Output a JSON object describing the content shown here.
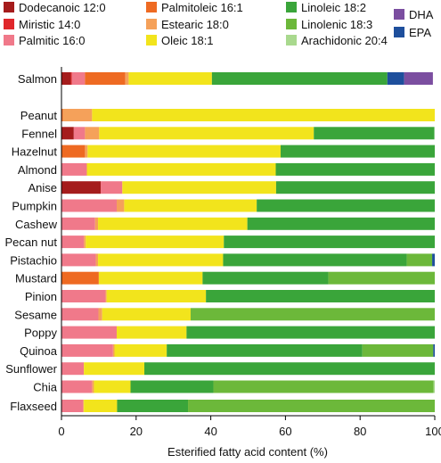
{
  "chart_data": {
    "type": "bar",
    "orientation": "horizontal",
    "stacked": true,
    "xlabel": "Esterified fatty acid content (%)",
    "ylabel": "",
    "xlim": [
      0,
      100
    ],
    "xticks": [
      "0",
      "20",
      "40",
      "60",
      "80",
      "100"
    ],
    "grid": false,
    "legend_position": "top",
    "categories": [
      "Salmon",
      "Peanut",
      "Fennel",
      "Hazelnut",
      "Almond",
      "Anise",
      "Pumpkin",
      "Cashew",
      "Pecan nut",
      "Pistachio",
      "Mustard",
      "Pinion",
      "Sesame",
      "Poppy",
      "Quinoa",
      "Sunflower",
      "Chia",
      "Flaxseed"
    ],
    "series": [
      {
        "name": "Dodecanoic 12:0",
        "color": "#a51c1c",
        "values": [
          2.5,
          0,
          3.3,
          0,
          0,
          10.5,
          0,
          0,
          0,
          0,
          0,
          0,
          0,
          0,
          0,
          0,
          0,
          0
        ]
      },
      {
        "name": "Miristic 14:0",
        "color": "#e0272b",
        "values": [
          0.3,
          0,
          0,
          0,
          0,
          0,
          0,
          0,
          0,
          0,
          0,
          0,
          0,
          0,
          0,
          0,
          0,
          0
        ]
      },
      {
        "name": "Palmitic 16:0",
        "color": "#f0798a",
        "values": [
          3.5,
          0,
          3.0,
          0,
          6.8,
          5.8,
          14.8,
          9.0,
          6.0,
          9.2,
          0,
          11.8,
          9.9,
          14.8,
          13.8,
          6.0,
          8.2,
          5.8
        ]
      },
      {
        "name": "Palmitoleic 16:1",
        "color": "#ee6a22",
        "values": [
          10.8,
          0.4,
          0,
          6.3,
          0,
          0,
          0,
          0,
          0,
          0,
          10.0,
          0,
          0,
          0,
          0,
          0,
          0,
          0
        ]
      },
      {
        "name": "Estearic 18:0",
        "color": "#f5a15a",
        "values": [
          0.9,
          7.8,
          3.8,
          0.7,
          0,
          0,
          2.0,
          0.8,
          0.5,
          0.6,
          0,
          0.3,
          1.0,
          0,
          0.4,
          0,
          0.5,
          0.2
        ]
      },
      {
        "name": "Oleic 18:1",
        "color": "#f2e41c",
        "values": [
          22.3,
          91.8,
          57.5,
          51.7,
          50.6,
          41.2,
          35.5,
          40.0,
          37.0,
          33.5,
          27.8,
          26.6,
          23.7,
          18.7,
          14.0,
          16.2,
          9.8,
          8.9
        ]
      },
      {
        "name": "Linoleic 18:2",
        "color": "#3aa53a",
        "values": [
          47.0,
          0,
          32.3,
          41.3,
          42.6,
          42.5,
          47.7,
          50.2,
          56.5,
          49.2,
          33.7,
          61.3,
          0,
          66.5,
          52.4,
          77.8,
          22.2,
          19.0
        ]
      },
      {
        "name": "Linolenic 18:3",
        "color": "#6cb83a",
        "values": [
          0,
          0,
          0,
          0,
          0,
          0,
          0,
          0,
          0,
          6.8,
          28.5,
          0,
          65.4,
          0,
          19.0,
          0,
          59.0,
          66.1
        ]
      },
      {
        "name": "Arachidonic 20:4",
        "color": "#a9d98e",
        "values": [
          0,
          0,
          0,
          0,
          0,
          0,
          0,
          0,
          0,
          0,
          0,
          0,
          0,
          0,
          0,
          0,
          0.3,
          0
        ]
      },
      {
        "name": "EPA",
        "color": "#1e4f9c",
        "values": [
          4.5,
          0,
          0,
          0,
          0,
          0,
          0,
          0,
          0,
          0.7,
          0,
          0,
          0,
          0,
          0.4,
          0,
          0,
          0
        ]
      },
      {
        "name": "DHA",
        "color": "#7b4ea0",
        "values": [
          7.7,
          0,
          0,
          0,
          0,
          0,
          0,
          0,
          0,
          0,
          0,
          0,
          0,
          0,
          0,
          0,
          0,
          0
        ]
      }
    ],
    "legend": [
      {
        "name": "Dodecanoic 12:0",
        "color": "#a51c1c"
      },
      {
        "name": "Palmitoleic 16:1",
        "color": "#ee6a22"
      },
      {
        "name": "Linoleic 18:2",
        "color": "#3aa53a"
      },
      {
        "name": "DHA",
        "color": "#7b4ea0"
      },
      {
        "name": "Miristic 14:0",
        "color": "#e0272b"
      },
      {
        "name": "Estearic 18:0",
        "color": "#f5a15a"
      },
      {
        "name": "Linolenic 18:3",
        "color": "#6cb83a"
      },
      {
        "name": "EPA",
        "color": "#1e4f9c"
      },
      {
        "name": "Palmitic 16:0",
        "color": "#f0798a"
      },
      {
        "name": "Oleic 18:1",
        "color": "#f2e41c"
      },
      {
        "name": "Arachidonic 20:4",
        "color": "#a9d98e"
      }
    ]
  }
}
